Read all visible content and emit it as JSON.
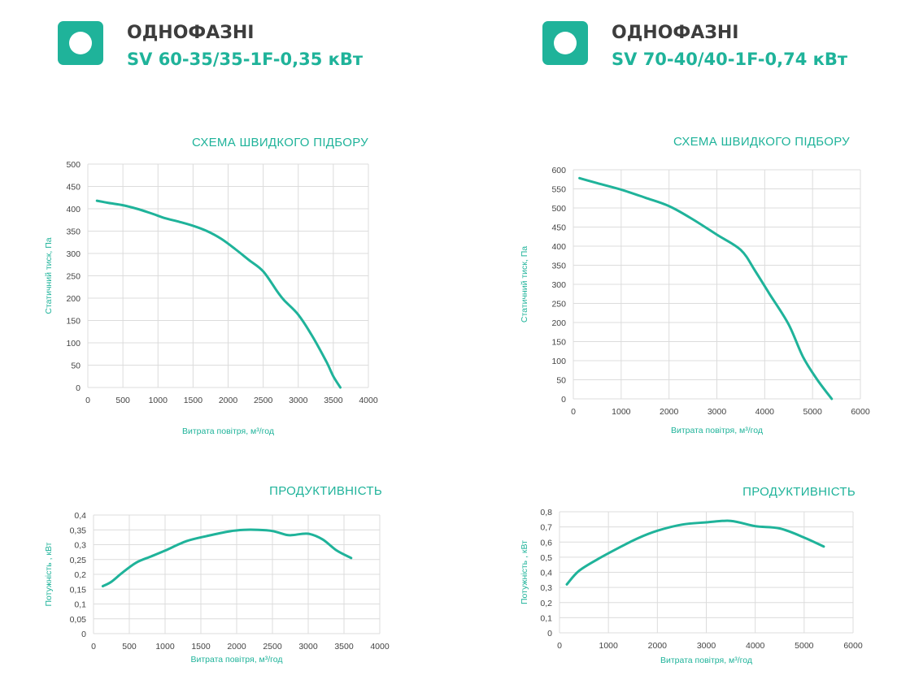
{
  "accent_color": "#1fb39a",
  "title_color": "#3d3d3d",
  "panels": [
    {
      "header": {
        "icon": "circle-badge-icon",
        "title": "ОДНОФАЗНІ",
        "subtitle": "SV 60-35/35-1F-0,35 кВт"
      }
    },
    {
      "header": {
        "icon": "circle-badge-icon",
        "title": "ОДНОФАЗНІ",
        "subtitle": "SV 70-40/40-1F-0,74 кВт"
      }
    }
  ],
  "chart_data": [
    {
      "type": "line",
      "title": "СХЕМА ШВИДКОГО ПІДБОРУ",
      "xlabel": "Витрата повітря, м³/год",
      "ylabel": "Статичний тиск, Па",
      "xlim": [
        0,
        4000
      ],
      "ylim": [
        0,
        500
      ],
      "x_ticks": [
        "0",
        "500",
        "1000",
        "1500",
        "2000",
        "2500",
        "3000",
        "3500",
        "4000"
      ],
      "y_ticks": [
        "0",
        "50",
        "100",
        "150",
        "200",
        "250",
        "300",
        "350",
        "400",
        "450",
        "500"
      ],
      "grid": true,
      "series": [
        {
          "x": [
            130,
            300,
            500,
            700,
            900,
            1100,
            1300,
            1500,
            1700,
            1900,
            2100,
            2300,
            2500,
            2700,
            2800,
            3000,
            3200,
            3400,
            3500,
            3600
          ],
          "y": [
            418,
            413,
            408,
            400,
            390,
            379,
            371,
            362,
            350,
            333,
            310,
            285,
            260,
            215,
            195,
            163,
            115,
            58,
            25,
            0
          ]
        }
      ]
    },
    {
      "type": "line",
      "title": "ПРОДУКТИВНІСТЬ",
      "xlabel": "Витрата повітря, м³/год",
      "ylabel": "Потужність , кВт",
      "xlim": [
        0,
        4000
      ],
      "ylim": [
        0,
        0.4
      ],
      "x_ticks": [
        "0",
        "500",
        "1000",
        "1500",
        "2000",
        "2500",
        "3000",
        "3500",
        "4000"
      ],
      "y_ticks": [
        "0",
        "0,05",
        "0,1",
        "0,15",
        "0,2",
        "0,25",
        "0,3",
        "0,35",
        "0,4"
      ],
      "grid": true,
      "series": [
        {
          "x": [
            130,
            250,
            400,
            600,
            800,
            1000,
            1300,
            1600,
            1900,
            2100,
            2300,
            2500,
            2700,
            2800,
            3000,
            3200,
            3400,
            3600
          ],
          "y": [
            0.16,
            0.175,
            0.205,
            0.24,
            0.26,
            0.28,
            0.312,
            0.33,
            0.345,
            0.35,
            0.35,
            0.346,
            0.333,
            0.333,
            0.337,
            0.318,
            0.28,
            0.255
          ]
        }
      ]
    },
    {
      "type": "line",
      "title": "СХЕМА ШВИДКОГО ПІДБОРУ",
      "xlabel": "Витрата повітря, м³/год",
      "ylabel": "Статичний тиск, Па",
      "xlim": [
        0,
        6000
      ],
      "ylim": [
        0,
        600
      ],
      "x_ticks": [
        "0",
        "1000",
        "2000",
        "3000",
        "4000",
        "5000",
        "6000"
      ],
      "y_ticks": [
        "0",
        "50",
        "100",
        "150",
        "200",
        "250",
        "300",
        "350",
        "400",
        "450",
        "500",
        "550",
        "600"
      ],
      "grid": true,
      "series": [
        {
          "x": [
            130,
            500,
            1000,
            1500,
            2000,
            2500,
            3000,
            3500,
            3800,
            4100,
            4500,
            4800,
            5100,
            5400
          ],
          "y": [
            578,
            565,
            548,
            527,
            505,
            470,
            430,
            390,
            335,
            275,
            195,
            110,
            50,
            0
          ]
        }
      ]
    },
    {
      "type": "line",
      "title": "ПРОДУКТИВНІСТЬ",
      "xlabel": "Витрата повітря, м³/год",
      "ylabel": "Потужність , кВт",
      "xlim": [
        0,
        6000
      ],
      "ylim": [
        0,
        0.8
      ],
      "x_ticks": [
        "0",
        "1000",
        "2000",
        "3000",
        "4000",
        "5000",
        "6000"
      ],
      "y_ticks": [
        "0",
        "0,1",
        "0,2",
        "0,3",
        "0,4",
        "0,5",
        "0,6",
        "0,7",
        "0,8"
      ],
      "grid": true,
      "series": [
        {
          "x": [
            150,
            400,
            800,
            1200,
            1600,
            2000,
            2500,
            3000,
            3500,
            4000,
            4500,
            5000,
            5400
          ],
          "y": [
            0.32,
            0.41,
            0.49,
            0.56,
            0.625,
            0.675,
            0.715,
            0.73,
            0.74,
            0.705,
            0.69,
            0.63,
            0.57
          ]
        }
      ]
    }
  ]
}
